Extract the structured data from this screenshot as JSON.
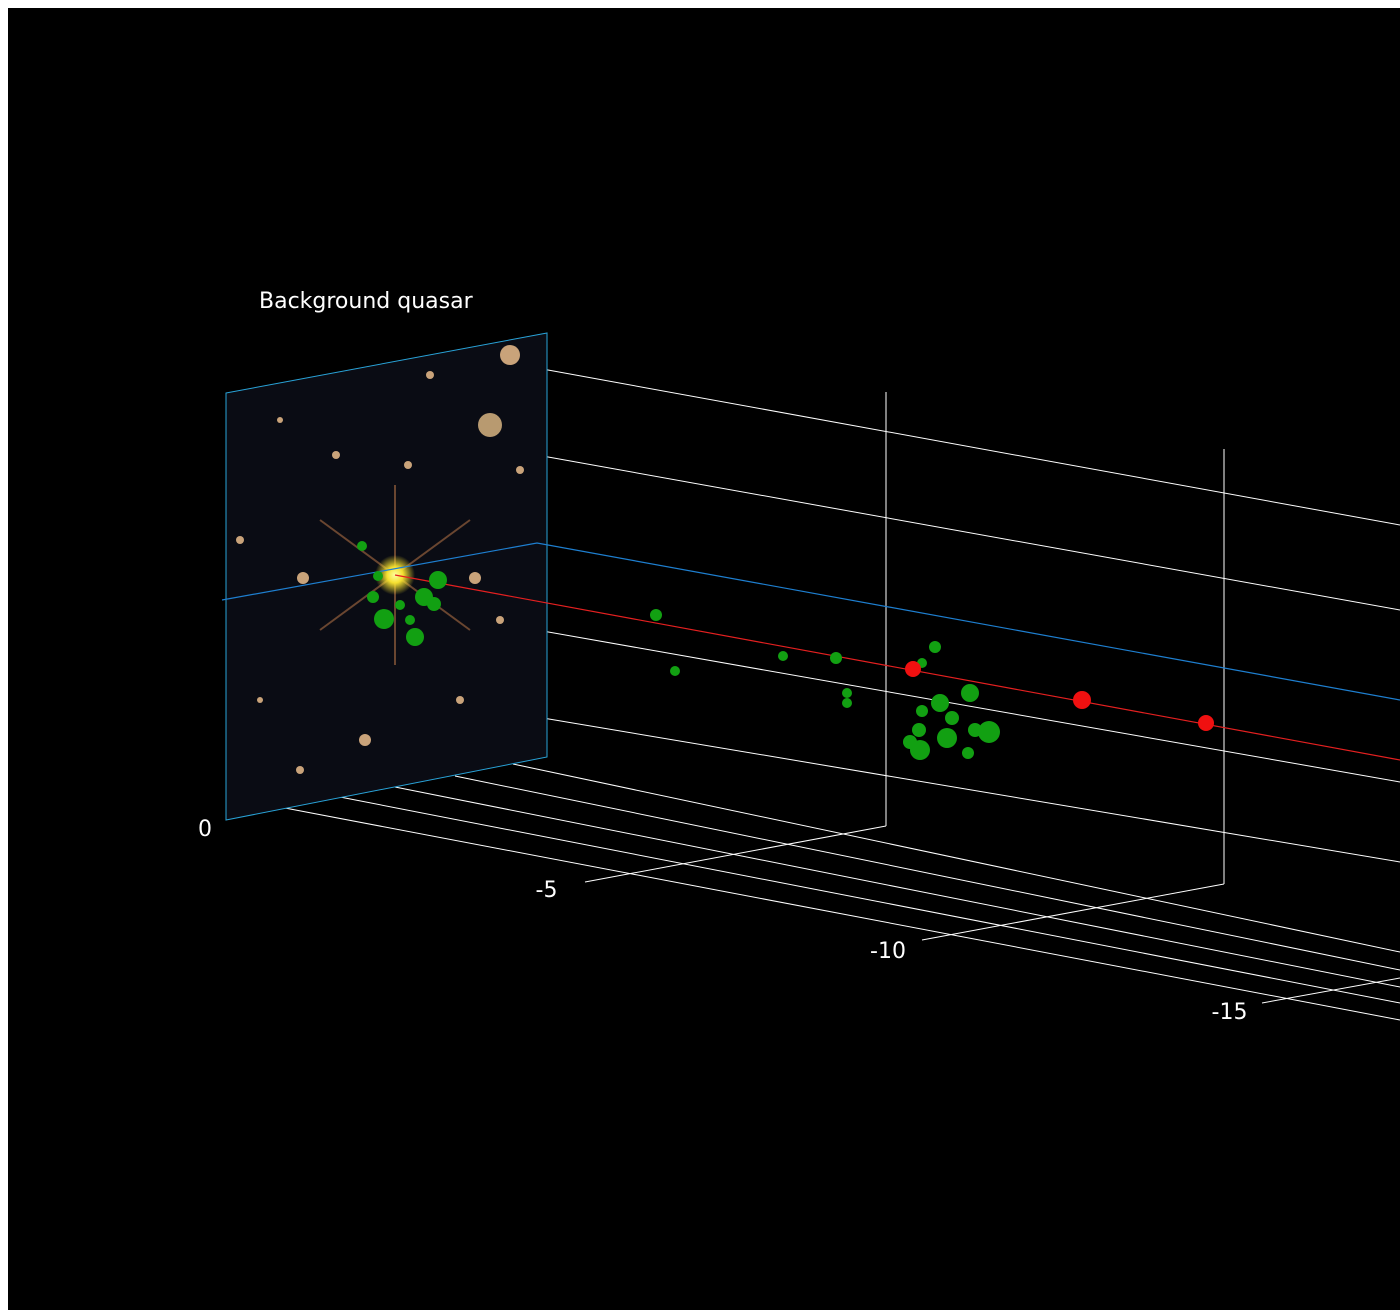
{
  "label": "Background quasar",
  "axis": {
    "ticks": [
      0,
      -5,
      -10,
      -15
    ]
  }
}
